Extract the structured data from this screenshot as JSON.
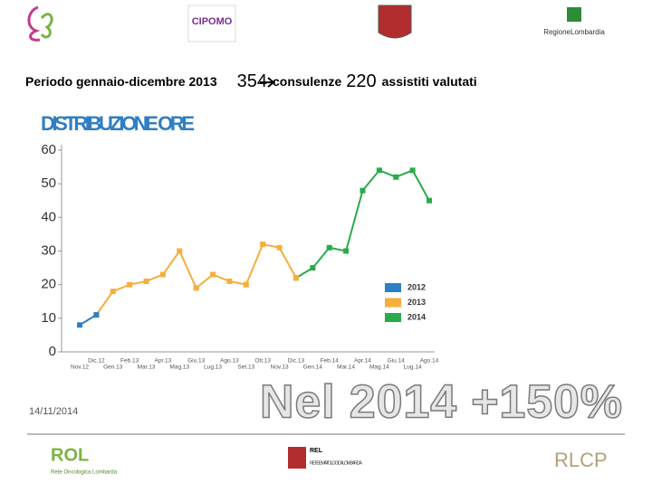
{
  "header": {
    "logos": [
      "CIPOMO",
      "RegioneLombardia"
    ]
  },
  "heading": {
    "text1": "Periodo gennaio-dicembre 2013",
    "n1": 354,
    "text2": "consulenze",
    "n2": 220,
    "text3": "assistiti valutati"
  },
  "chart_data": {
    "type": "line",
    "title": "DISTRIBUZIONE ORE",
    "categories": [
      "Nov.12",
      "Dic.12",
      "Gen.13",
      "Feb.13",
      "Mar.13",
      "Apr.13",
      "Mag.13",
      "Giu.13",
      "Lug.13",
      "Ago.13",
      "Set.13",
      "Ott.13",
      "Nov.13",
      "Dic.13",
      "Gen.14",
      "Feb.14",
      "Mar.14",
      "Apr.14",
      "Mag.14",
      "Giu.14",
      "Lug.14",
      "Ago.14"
    ],
    "series": [
      {
        "name": "2012",
        "color": "#2e7fc4",
        "values": [
          8,
          11,
          null,
          null,
          null,
          null,
          null,
          null,
          null,
          null,
          null,
          null,
          null,
          null,
          null,
          null,
          null,
          null,
          null,
          null,
          null,
          null
        ]
      },
      {
        "name": "2013",
        "color": "#f6ae3c",
        "values": [
          null,
          11,
          18,
          20,
          21,
          23,
          30,
          19,
          23,
          21,
          20,
          32,
          31,
          22,
          null,
          null,
          null,
          null,
          null,
          null,
          null,
          null
        ]
      },
      {
        "name": "2014",
        "color": "#2aab4a",
        "values": [
          null,
          null,
          null,
          null,
          null,
          null,
          null,
          null,
          null,
          null,
          null,
          null,
          null,
          22,
          25,
          31,
          30,
          48,
          54,
          52,
          54,
          45
        ]
      }
    ],
    "ylim": [
      0,
      60
    ],
    "yticks": [
      0,
      10,
      20,
      30,
      40,
      50,
      60
    ],
    "grid": false,
    "legend": "lower right"
  },
  "footer": {
    "date": "14/11/2014",
    "highlight": "Nel 2014 +150%",
    "logos": [
      "ROL",
      "Rete Oncologica Lombarda",
      "REL",
      "RETE EMATOLOGICA LOMBARDA",
      "RLCP"
    ]
  }
}
